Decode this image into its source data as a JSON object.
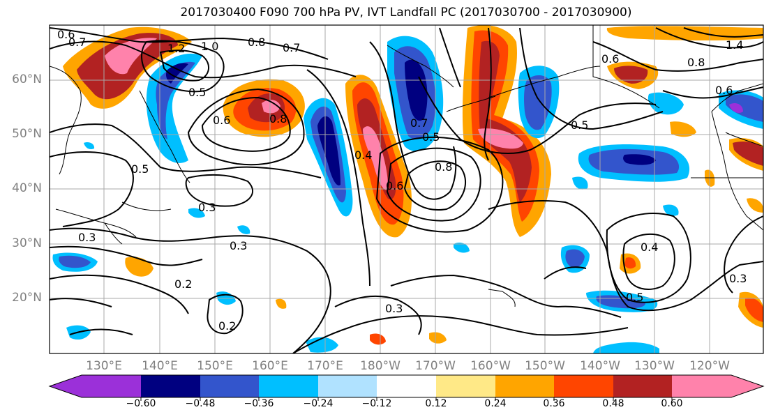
{
  "title": "2017030400 F090 700 hPa PV, IVT Landfall PC (2017030700 - 2017030900)",
  "map": {
    "lat_labels": [
      "60°N",
      "50°N",
      "40°N",
      "30°N",
      "20°N"
    ],
    "lon_labels": [
      "130°E",
      "140°E",
      "150°E",
      "160°E",
      "170°E",
      "180°W",
      "170°W",
      "160°W",
      "150°W",
      "140°W",
      "130°W",
      "120°W"
    ],
    "contour_labels": [
      "0.6",
      "0.7",
      "1.2",
      "1.0",
      "0.8",
      "0.7",
      "0.5",
      "0.6",
      "0.8",
      "0.7",
      "0.5",
      "0.4",
      "0.6",
      "0.5",
      "0.8",
      "0.3",
      "0.3",
      "0.3",
      "0.2",
      "0.2",
      "0.3",
      "0.5",
      "0.4",
      "0.3",
      "0.6",
      "0.8",
      "1.4",
      "0.6",
      "0.5"
    ]
  },
  "colorbar": {
    "ticks": [
      "−0.60",
      "−0.48",
      "−0.36",
      "−0.24",
      "−0.12",
      "0.12",
      "0.24",
      "0.36",
      "0.48",
      "0.60"
    ],
    "colors": [
      "#9b30d9",
      "#000080",
      "#3355cc",
      "#00bfff",
      "#b0e2ff",
      "#ffffff",
      "#ffe987",
      "#ffa500",
      "#ff4500",
      "#b22222",
      "#ff82ab"
    ]
  }
}
